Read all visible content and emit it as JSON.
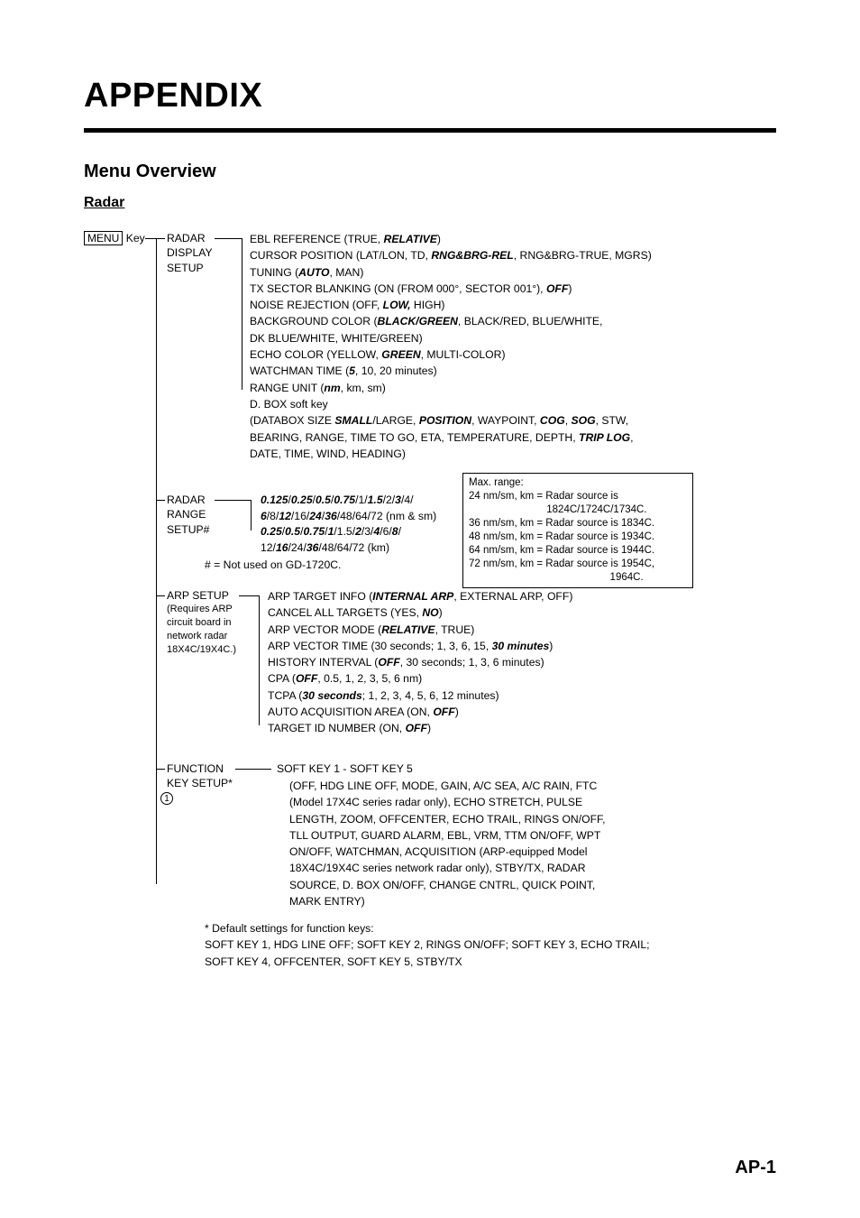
{
  "page": {
    "title": "APPENDIX",
    "section": "Menu Overview",
    "subsection": "Radar",
    "page_number": "AP-1"
  },
  "menu_key": {
    "label": "MENU",
    "suffix": "Key"
  },
  "radar_display_setup": {
    "menu": "RADAR DISPLAY SETUP",
    "items": [
      {
        "text_parts": [
          "EBL REFERENCE (TRUE, ",
          "RELATIVE",
          ")"
        ],
        "bold_idx": [
          1
        ]
      },
      {
        "text_parts": [
          "CURSOR POSITION (LAT/LON, TD, ",
          "RNG&BRG-REL",
          ", RNG&BRG-TRUE, MGRS)"
        ],
        "bold_idx": [
          1
        ]
      },
      {
        "text_parts": [
          "TUNING (",
          "AUTO",
          ", MAN)"
        ],
        "bold_idx": [
          1
        ]
      },
      {
        "text_parts": [
          "TX SECTOR BLANKING (ON (FROM 000°, SECTOR 001°), ",
          "OFF",
          ")"
        ],
        "bold_idx": [
          1
        ]
      },
      {
        "text_parts": [
          "NOISE REJECTION (OFF, ",
          "LOW,",
          " HIGH)"
        ],
        "bold_idx": [
          1
        ]
      },
      {
        "text_parts": [
          "BACKGROUND COLOR (",
          "BLACK/GREEN",
          ", BLACK/RED, BLUE/WHITE,"
        ],
        "bold_idx": [
          1
        ]
      },
      {
        "text_parts": [
          "        DK BLUE/WHITE, WHITE/GREEN)"
        ],
        "bold_idx": []
      },
      {
        "text_parts": [
          "ECHO COLOR (YELLOW, ",
          "GREEN",
          ", MULTI-COLOR)"
        ],
        "bold_idx": [
          1
        ]
      },
      {
        "text_parts": [
          "WATCHMAN TIME (",
          "5",
          ", 10, 20 minutes)"
        ],
        "bold_idx": [
          1
        ]
      },
      {
        "text_parts": [
          "RANGE UNIT (",
          "nm",
          ", km, sm)"
        ],
        "bold_idx": [
          1
        ]
      },
      {
        "text_parts": [
          "D. BOX soft key"
        ],
        "bold_idx": []
      },
      {
        "text_parts": [
          "  (DATABOX SIZE ",
          "SMALL",
          "/LARGE, ",
          "POSITION",
          ", WAYPOINT, ",
          "COG",
          ", ",
          "SOG",
          ", STW,"
        ],
        "bold_idx": [
          1,
          3,
          5,
          7
        ]
      },
      {
        "text_parts": [
          "  BEARING,  RANGE, TIME TO GO, ETA, TEMPERATURE, DEPTH, ",
          "TRIP LOG",
          ","
        ],
        "bold_idx": [
          1
        ]
      },
      {
        "text_parts": [
          "  DATE, TIME, WIND, HEADING)"
        ],
        "bold_idx": []
      }
    ]
  },
  "radar_range_setup": {
    "menu": "RADAR RANGE SETUP#",
    "line1_parts": [
      "0.125",
      "/",
      "0.25",
      "/",
      "0.5",
      "/",
      "0.75",
      "/1/",
      "1.5",
      "/2/",
      "3",
      "/4/"
    ],
    "line1_bold": [
      0,
      2,
      4,
      6,
      8,
      10
    ],
    "line2_parts": [
      "6",
      "/8/",
      "12",
      "/16/",
      "24",
      "/",
      "36",
      "/48/64/72 (nm & sm)"
    ],
    "line2_bold": [
      0,
      2,
      4,
      6
    ],
    "line3_parts": [
      "0.25",
      "/",
      "0.5",
      "/",
      "0.75",
      "/",
      "1",
      "/1.5/",
      "2",
      "/3/",
      "4",
      "/6/",
      "8",
      "/"
    ],
    "line3_bold": [
      0,
      2,
      4,
      6,
      8,
      10,
      12
    ],
    "line4_parts": [
      "12/",
      "16",
      "/24/",
      "36",
      "/48/64/72 (km)"
    ],
    "line4_bold": [
      1,
      3
    ],
    "note": "# = Not used on GD-1720C."
  },
  "max_range_box": {
    "title": "Max. range:",
    "lines": [
      "24 nm/sm, km = Radar source is",
      "                           1824C/1724C/1734C.",
      "36 nm/sm, km = Radar source is 1834C.",
      "48 nm/sm, km = Radar source is 1934C.",
      "64 nm/sm, km = Radar source is 1944C.",
      "72 nm/sm, km = Radar source is 1954C,",
      "                                                 1964C."
    ]
  },
  "arp_setup": {
    "menu": "ARP SETUP",
    "menu_note": "(Requires ARP circuit board in network radar 18X4C/19X4C.)",
    "items": [
      {
        "parts": [
          "ARP TARGET INFO (",
          "INTERNAL ARP",
          ", EXTERNAL ARP, OFF)"
        ],
        "bold": [
          1
        ]
      },
      {
        "parts": [
          "CANCEL ALL TARGETS (YES, ",
          "NO",
          ")"
        ],
        "bold": [
          1
        ]
      },
      {
        "parts": [
          "ARP VECTOR MODE (",
          "RELATIVE",
          ", TRUE)"
        ],
        "bold": [
          1
        ]
      },
      {
        "parts": [
          "ARP VECTOR TIME (30 seconds; 1, 3, 6, 15, ",
          "30 minutes",
          ")"
        ],
        "bold": [
          1
        ]
      },
      {
        "parts": [
          "HISTORY INTERVAL (",
          "OFF",
          ", 30 seconds; 1, 3, 6 minutes)"
        ],
        "bold": [
          1
        ]
      },
      {
        "parts": [
          "CPA (",
          "OFF",
          ", 0.5, 1, 2, 3, 5, 6 nm)"
        ],
        "bold": [
          1
        ]
      },
      {
        "parts": [
          "TCPA (",
          "30 seconds",
          "; 1, 2, 3, 4, 5, 6, 12 minutes)"
        ],
        "bold": [
          1
        ]
      },
      {
        "parts": [
          "AUTO ACQUISITION AREA (ON, ",
          "OFF",
          ")"
        ],
        "bold": [
          1
        ]
      },
      {
        "parts": [
          "TARGET ID NUMBER (ON, ",
          "OFF",
          ")"
        ],
        "bold": [
          1
        ]
      }
    ]
  },
  "function_key_setup": {
    "menu": "FUNCTION KEY SETUP*",
    "header": "SOFT KEY 1 - SOFT KEY 5",
    "lines": [
      "(OFF, HDG LINE OFF, MODE, GAIN, A/C SEA, A/C RAIN, FTC",
      "(Model 17X4C series radar only), ECHO STRETCH, PULSE",
      "LENGTH, ZOOM, OFFCENTER, ECHO TRAIL, RINGS ON/OFF,",
      "TLL OUTPUT, GUARD ALARM, EBL, VRM, TTM ON/OFF, WPT",
      "ON/OFF, WATCHMAN, ACQUISITION (ARP-equipped Model",
      "18X4C/19X4C series network radar only), STBY/TX, RADAR",
      "SOURCE, D. BOX ON/OFF, CHANGE CNTRL, QUICK POINT,",
      "MARK ENTRY)"
    ],
    "footnote": [
      "* Default settings for function keys:",
      "SOFT KEY 1, HDG LINE OFF; SOFT KEY 2, RINGS ON/OFF; SOFT KEY 3, ECHO TRAIL;",
      "SOFT KEY 4, OFFCENTER, SOFT KEY 5, STBY/TX"
    ]
  },
  "circle": "1"
}
